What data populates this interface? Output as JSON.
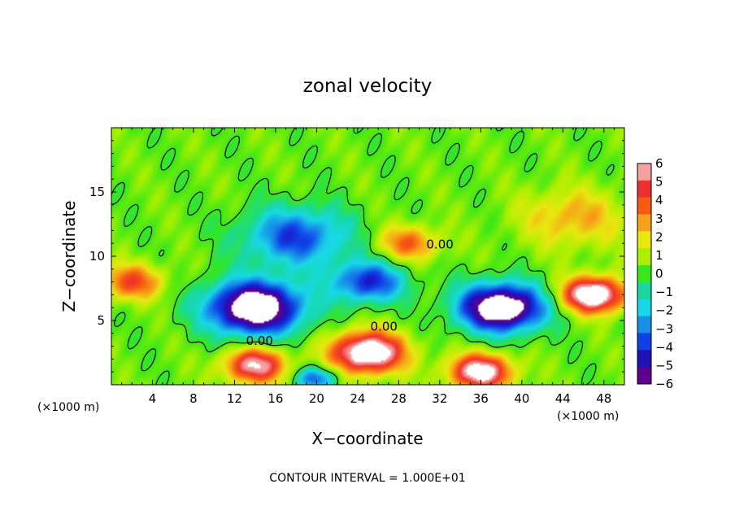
{
  "chart_data": {
    "type": "heatmap",
    "title": "zonal velocity",
    "xlabel": "X−coordinate",
    "ylabel": "Z−coordinate",
    "x_unit_left": "(×1000 m)",
    "x_unit_right": "(×1000 m)",
    "footer": "CONTOUR INTERVAL = 1.000E+01",
    "contour_label": "0.00",
    "xlim": [
      0,
      50
    ],
    "ylim": [
      0,
      20
    ],
    "x_ticks": [
      4,
      8,
      12,
      16,
      20,
      24,
      28,
      32,
      36,
      40,
      44,
      48
    ],
    "y_ticks": [
      5,
      10,
      15
    ],
    "colorbar": {
      "range": [
        -6,
        6
      ],
      "labels": [
        "6",
        "5",
        "4",
        "3",
        "2",
        "1",
        "0",
        "−1",
        "−2",
        "−3",
        "−4",
        "−5",
        "−6"
      ],
      "colors": [
        "#f7a0a0",
        "#ef3030",
        "#f85a10",
        "#f8a018",
        "#e8e810",
        "#a8f000",
        "#38e818",
        "#18d8a0",
        "#18d8e8",
        "#1890e8",
        "#1040e8",
        "#2010b8",
        "#600090"
      ]
    },
    "features": [
      {
        "x": 18,
        "z": 11.5,
        "u": -4.5,
        "r": 5
      },
      {
        "x": 25,
        "z": 8,
        "u": -5,
        "r": 3.5
      },
      {
        "x": 14,
        "z": 6,
        "u": -9,
        "r": 4.5
      },
      {
        "x": 38,
        "z": 6,
        "u": -9,
        "r": 4
      },
      {
        "x": 47,
        "z": 7,
        "u": 8,
        "r": 3
      },
      {
        "x": 29,
        "z": 11,
        "u": 3.5,
        "r": 3
      },
      {
        "x": 45,
        "z": 13,
        "u": 2.5,
        "r": 5
      },
      {
        "x": 2,
        "z": 8,
        "u": 4,
        "r": 3
      },
      {
        "x": 25,
        "z": 2.5,
        "u": 8,
        "r": 3.5
      },
      {
        "x": 14,
        "z": 1.5,
        "u": 6,
        "r": 3
      },
      {
        "x": 36,
        "z": 1,
        "u": 7,
        "r": 3
      },
      {
        "x": 20,
        "z": 0.5,
        "u": -4,
        "r": 2
      }
    ]
  }
}
